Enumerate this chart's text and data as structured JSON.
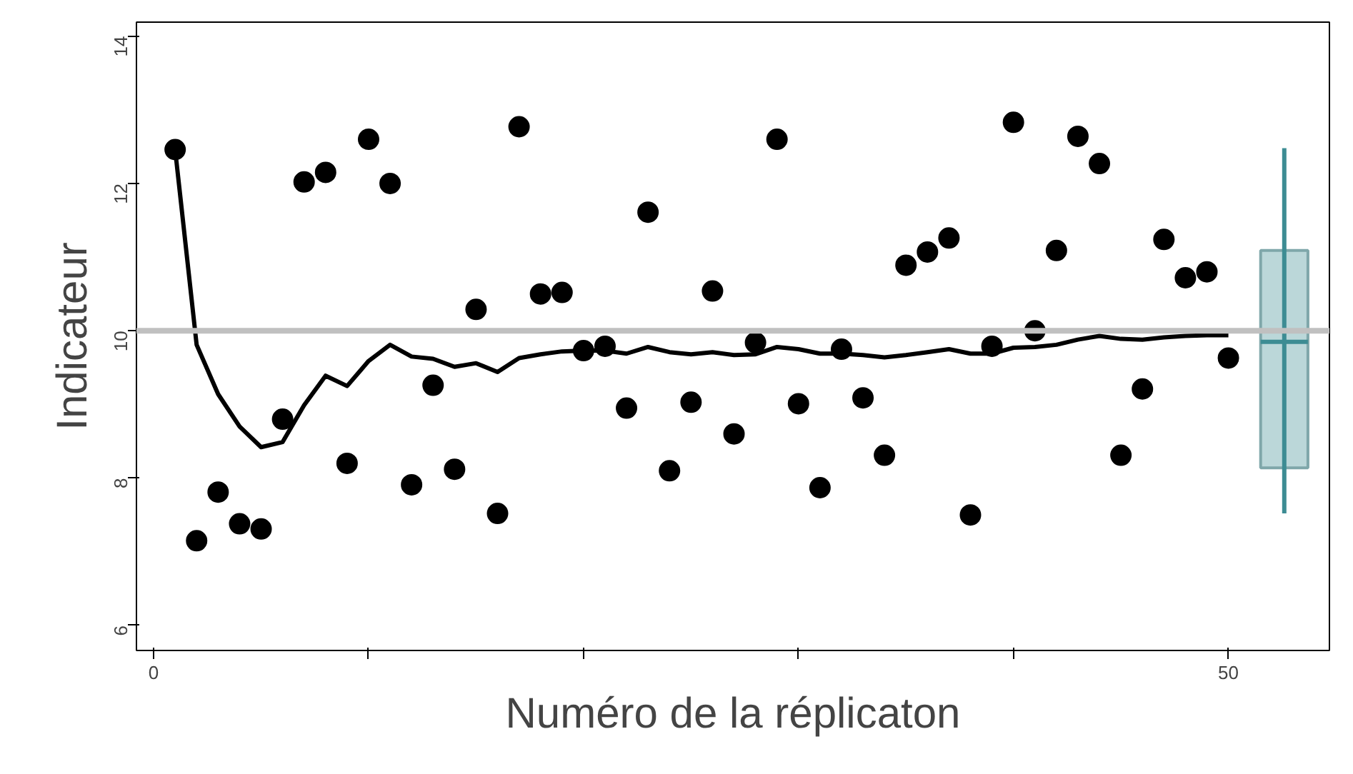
{
  "chart_data": {
    "type": "scatter",
    "xlabel": "Numéro de la réplicaton",
    "ylabel": "Indicateur",
    "x": [
      1,
      2,
      3,
      4,
      5,
      6,
      7,
      8,
      9,
      10,
      11,
      12,
      13,
      14,
      15,
      16,
      17,
      18,
      19,
      20,
      21,
      22,
      23,
      24,
      25,
      26,
      27,
      28,
      29,
      30,
      31,
      32,
      33,
      34,
      35,
      36,
      37,
      38,
      39,
      40,
      41,
      42,
      43,
      44,
      45,
      46,
      47,
      48,
      49,
      50
    ],
    "series": [
      {
        "color": "#000000",
        "marker": "circle",
        "values": [
          12.46,
          7.15,
          7.81,
          7.38,
          7.31,
          8.8,
          12.02,
          12.15,
          8.2,
          12.6,
          12.0,
          7.91,
          9.26,
          8.12,
          10.29,
          7.52,
          12.77,
          10.5,
          10.52,
          9.73,
          9.79,
          8.95,
          11.61,
          8.1,
          9.03,
          10.54,
          8.6,
          9.84,
          12.6,
          9.01,
          7.87,
          9.75,
          9.09,
          8.31,
          10.89,
          11.07,
          11.26,
          7.5,
          9.79,
          12.83,
          10.0,
          11.09,
          12.64,
          12.27,
          8.31,
          9.21,
          11.24,
          10.72,
          10.8,
          9.63
        ]
      },
      {
        "type": "line",
        "color": "#000000",
        "line_style": "solid",
        "values": [
          12.46,
          9.81,
          9.14,
          8.7,
          8.42,
          8.49,
          8.99,
          9.39,
          9.25,
          9.59,
          9.81,
          9.65,
          9.62,
          9.51,
          9.56,
          9.44,
          9.63,
          9.68,
          9.72,
          9.73,
          9.73,
          9.69,
          9.78,
          9.71,
          9.68,
          9.71,
          9.67,
          9.68,
          9.78,
          9.75,
          9.69,
          9.69,
          9.67,
          9.64,
          9.67,
          9.71,
          9.75,
          9.69,
          9.69,
          9.77,
          9.78,
          9.81,
          9.88,
          9.93,
          9.89,
          9.88,
          9.91,
          9.93,
          9.94,
          9.94
        ]
      },
      {
        "type": "box",
        "color": "#3d8c93",
        "x": [
          52.6
        ],
        "boxes": [
          {
            "low": 7.52,
            "q1": 8.14,
            "median": 9.85,
            "q3": 11.09,
            "high": 12.48
          }
        ]
      }
    ],
    "ref_lines": [
      {
        "axis": "y",
        "value": 10,
        "color": "#c0c0c0"
      }
    ],
    "xlim": [
      -0.8,
      54.7
    ],
    "ylim": [
      5.66,
      14.19
    ],
    "xticks": [
      0,
      {
        "value": 10,
        "label": null
      },
      {
        "value": 20,
        "label": null
      },
      {
        "value": 30,
        "label": null
      },
      {
        "value": 40,
        "label": null
      },
      50
    ],
    "yticks": [
      6,
      8,
      10,
      12,
      14
    ],
    "grid": false
  }
}
